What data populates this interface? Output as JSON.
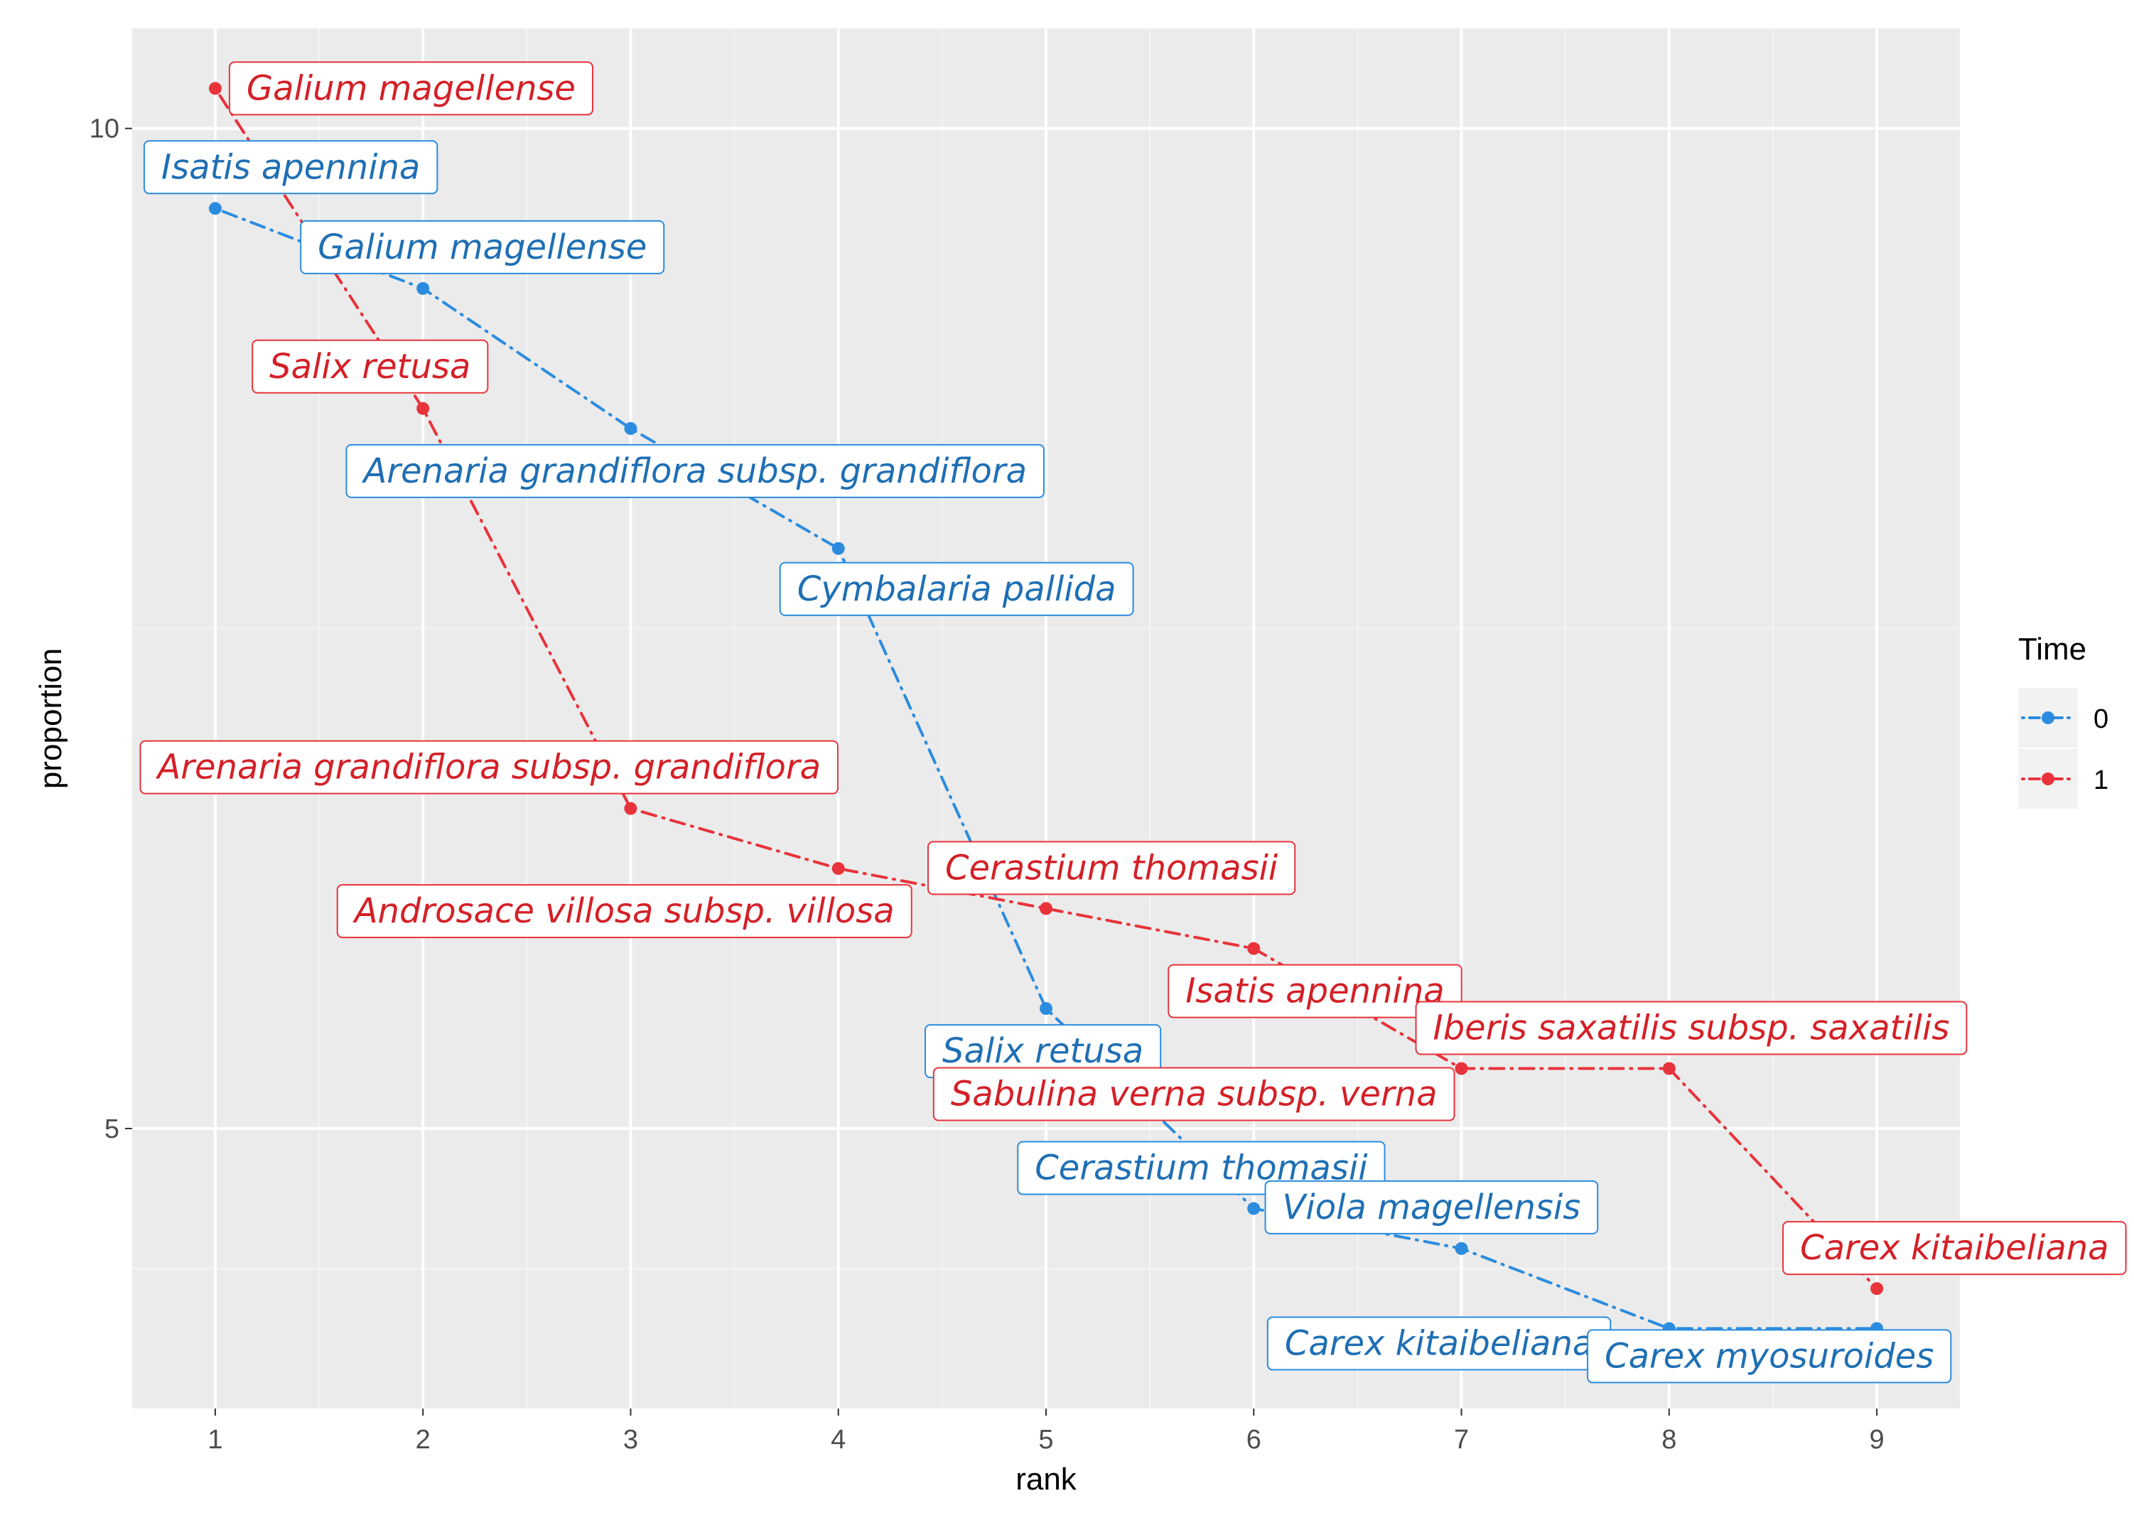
{
  "chart_data": {
    "type": "line",
    "title": "",
    "xlabel": "rank",
    "ylabel": "proportion",
    "x": [
      1,
      2,
      3,
      4,
      5,
      6,
      7,
      8,
      9
    ],
    "x_ticks": [
      1,
      2,
      3,
      4,
      5,
      6,
      7,
      8,
      9
    ],
    "xlim": [
      0.6,
      9.4
    ],
    "y_ticks": [
      5,
      10
    ],
    "ylim": [
      3.6,
      10.5
    ],
    "grid": true,
    "line_style": "dot-dash",
    "legend": {
      "title": "Time",
      "position": "right",
      "entries": [
        "0",
        "1"
      ]
    },
    "series": [
      {
        "name": "0",
        "color": "#2b8cdf",
        "text_color": "#1f6fb4",
        "values": [
          9.6,
          9.2,
          8.5,
          7.9,
          5.6,
          4.6,
          4.4,
          4.0,
          4.0
        ],
        "labels": [
          "Isatis apennina",
          "Galium magellense",
          "Arenaria grandiflora subsp. grandiflora",
          "Cymbalaria pallida",
          "Salix retusa",
          "Cerastium thomasii",
          "Viola magellensis",
          "Carex kitaibeliana",
          "Carex myosuroides"
        ]
      },
      {
        "name": "1",
        "color": "#e8333b",
        "text_color": "#d42027",
        "values": [
          10.2,
          8.6,
          6.6,
          6.3,
          6.1,
          5.9,
          5.3,
          5.3,
          4.2
        ],
        "labels": [
          "Galium magellense",
          "Salix retusa",
          "Arenaria grandiflora subsp. grandiflora",
          "Androsace villosa subsp. villosa",
          "Cerastium thomasii",
          "Isatis apennina",
          "Iberis saxatilis subsp. saxatilis",
          "Sabulina verna subsp. verna",
          "Carex kitaibeliana"
        ]
      }
    ]
  }
}
